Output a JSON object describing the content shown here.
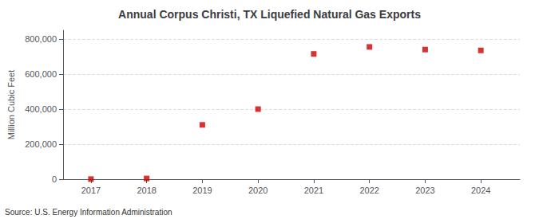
{
  "chart_data": {
    "type": "scatter",
    "title": "Annual Corpus Christi, TX Liquefied Natural Gas Exports",
    "ylabel": "Million Cubic Feet",
    "source": "Source: U.S. Energy Information Administration",
    "x": [
      2017,
      2018,
      2019,
      2020,
      2021,
      2022,
      2023,
      2024
    ],
    "values": [
      500,
      4000,
      310000,
      400000,
      715000,
      755000,
      740000,
      735000
    ],
    "color": "#cc0000",
    "marker": "square",
    "xlim": [
      2016.5,
      2024.7
    ],
    "xticks": [
      2017,
      2018,
      2019,
      2020,
      2021,
      2022,
      2023,
      2024
    ],
    "ylim": [
      0,
      850000
    ],
    "yticks": [
      0,
      {
        "value": 200000,
        "label": "200,000"
      },
      {
        "value": 400000,
        "label": "400,000"
      },
      {
        "value": 600000,
        "label": "600,000"
      },
      {
        "value": 800000,
        "label": "800,000"
      }
    ],
    "grid": true
  }
}
